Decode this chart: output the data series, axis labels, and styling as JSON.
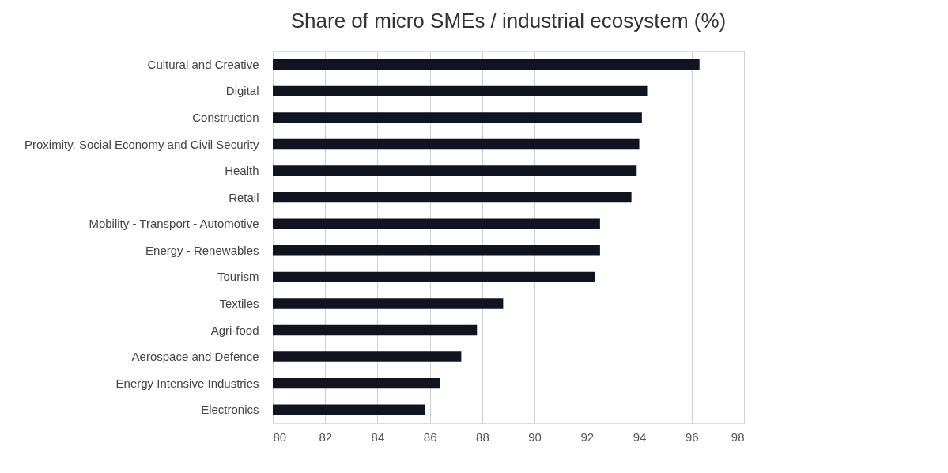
{
  "chart_data": {
    "type": "bar",
    "orientation": "horizontal",
    "title": "Share of micro SMEs / industrial ecosystem (%)",
    "categories": [
      "Cultural and Creative",
      "Digital",
      "Construction",
      "Proximity, Social Economy and Civil Security",
      "Health",
      "Retail",
      "Mobility - Transport - Automotive",
      "Energy - Renewables",
      "Tourism",
      "Textiles",
      "Agri-food",
      "Aerospace and Defence",
      "Energy Intensive Industries",
      "Electronics"
    ],
    "values": [
      96.3,
      94.3,
      94.1,
      94.0,
      93.9,
      93.7,
      92.5,
      92.5,
      92.3,
      88.8,
      87.8,
      87.2,
      86.4,
      85.8
    ],
    "color": "#0f1420",
    "xlim": [
      80,
      98
    ],
    "xticks": [
      80,
      82,
      84,
      86,
      88,
      90,
      92,
      94,
      96,
      98
    ],
    "grid": "x"
  }
}
